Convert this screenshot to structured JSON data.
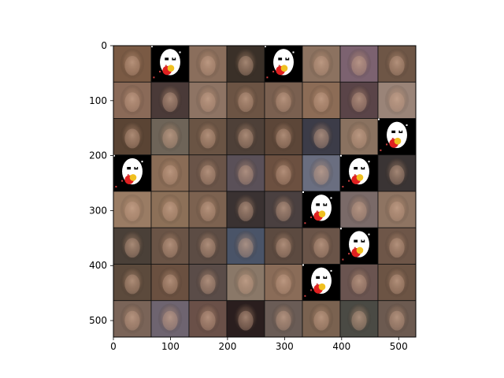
{
  "chart_data": {
    "type": "heatmap",
    "description_of_content": "",
    "grid": {
      "rows": 8,
      "cols": 8
    },
    "x_range": [
      0,
      530
    ],
    "y_range": [
      0,
      530
    ],
    "y_inverted": true,
    "xticks": [
      0,
      100,
      200,
      300,
      400,
      500
    ],
    "yticks": [
      0,
      100,
      200,
      300,
      400,
      500
    ],
    "xtick_labels": [
      "0",
      "100",
      "200",
      "300",
      "400",
      "500"
    ],
    "ytick_labels": [
      "0",
      "100",
      "200",
      "300",
      "400",
      "500"
    ],
    "grid_lines": false,
    "cells": [
      [
        "#7a5a44",
        "#000000",
        "#8a6e5c",
        "#3a3028",
        "#000000",
        "#8c7260",
        "#7c6270",
        "#6e5646"
      ],
      [
        "#8a6a58",
        "#4a3a38",
        "#8e7464",
        "#6c5444",
        "#7a6050",
        "#8c6c56",
        "#5a4448",
        "#9a8478"
      ],
      [
        "#5a4434",
        "#6e6458",
        "#6a5444",
        "#4e4038",
        "#5c4638",
        "#3c3c48",
        "#8a7260",
        "#000000"
      ],
      [
        "#000000",
        "#8a6c56",
        "#6a5448",
        "#5a5058",
        "#6c5040",
        "#6a6e80",
        "#000000",
        "#3a3434"
      ],
      [
        "#9a7c64",
        "#8c7058",
        "#7c6250",
        "#3a3232",
        "#4a4040",
        "#000000",
        "#7a6a68",
        "#8e7462"
      ],
      [
        "#4a4038",
        "#6a5446",
        "#5c4c44",
        "#4a5468",
        "#5c4a40",
        "#6a5448",
        "#000000",
        "#6e5648"
      ],
      [
        "#5c4a3c",
        "#6a5040",
        "#5a4c48",
        "#8a7868",
        "#8a6c58",
        "#000000",
        "#6a5450",
        "#6c5444"
      ],
      [
        "#7a6458",
        "#6e6470",
        "#6a5048",
        "#2a1e1e",
        "#6a5c56",
        "#7a6250",
        "#4a4a44",
        "#6c5a50"
      ]
    ],
    "masked_cells": [
      [
        0,
        1
      ],
      [
        0,
        4
      ],
      [
        2,
        7
      ],
      [
        3,
        0
      ],
      [
        3,
        6
      ],
      [
        4,
        5
      ],
      [
        5,
        6
      ],
      [
        6,
        5
      ]
    ],
    "colors": {
      "frame": "#000000",
      "background": "#ffffff",
      "mask_white": "#ffffff",
      "mask_red": "#e02020",
      "mask_yellow": "#f0c020"
    }
  }
}
